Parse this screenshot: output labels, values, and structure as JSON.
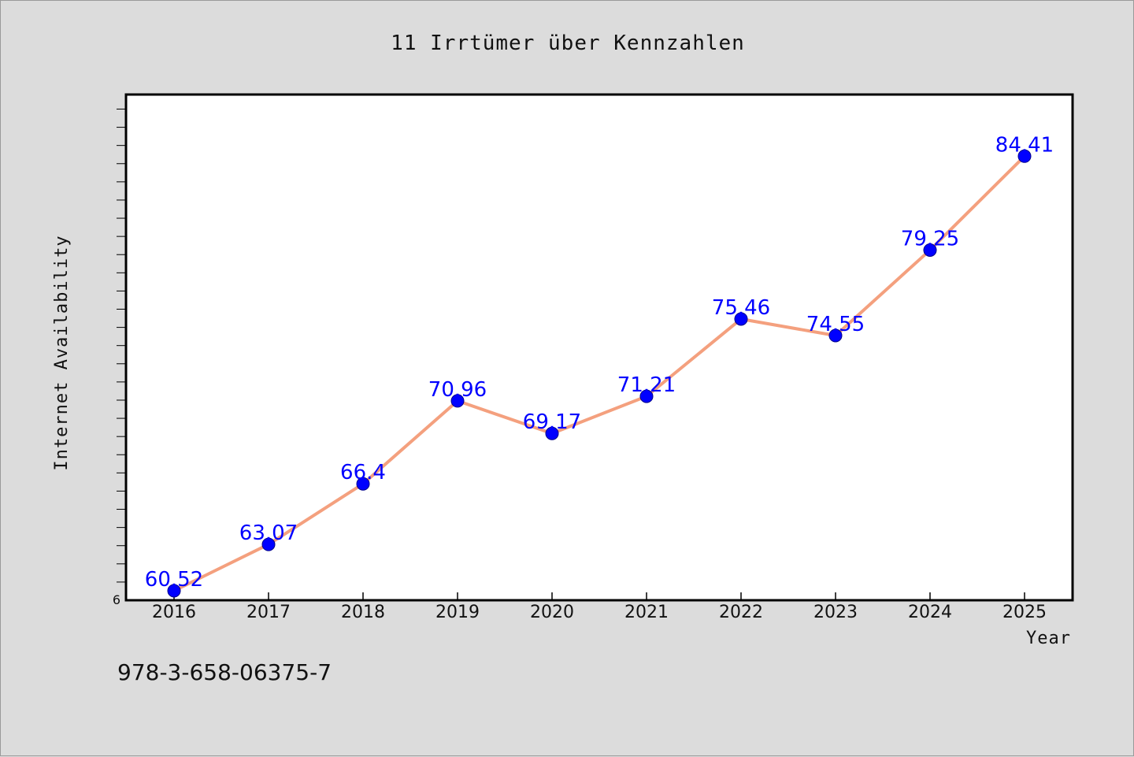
{
  "chart_data": {
    "type": "line",
    "title": "11 Irrtümer über Kennzahlen",
    "xlabel": "Year",
    "ylabel": "Internet Availability",
    "categories": [
      "2016",
      "2017",
      "2018",
      "2019",
      "2020",
      "2021",
      "2022",
      "2023",
      "2024",
      "2025"
    ],
    "series": [
      {
        "values": [
          60.52,
          63.07,
          66.4,
          70.96,
          69.17,
          71.21,
          75.46,
          74.55,
          79.25,
          84.41
        ],
        "line_color": "#f4a07e",
        "marker_color": "#0000ff"
      }
    ],
    "data_labels": [
      "60.52",
      "63.07",
      "66.4",
      "70.96",
      "69.17",
      "71.21",
      "75.46",
      "74.55",
      "79.25",
      "84.41"
    ],
    "ylim": [
      60,
      87.8
    ],
    "y_tick_label": "6",
    "y_minor_tick_step": 1,
    "grid": false,
    "legend": "none",
    "data_label_color": "#0000ff",
    "background": "#dcdcdc",
    "plot_background": "#ffffff"
  },
  "footer": {
    "isbn": "978-3-658-06375-7"
  }
}
